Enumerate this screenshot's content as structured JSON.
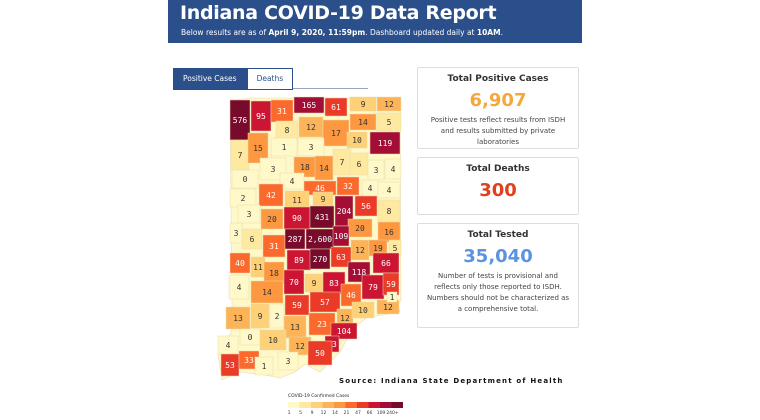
{
  "header": {
    "title": "Indiana COVID-19 Data Report",
    "sub_prefix": "Below results are as of ",
    "sub_date": "April 9, 2020, 11:59pm",
    "sub_mid": ". Dashboard updated daily at ",
    "sub_time": "10AM",
    "sub_end": "."
  },
  "tabs": [
    {
      "label": "Positive Cases",
      "active": true
    },
    {
      "label": "Deaths",
      "active": false
    }
  ],
  "panels": {
    "positive": {
      "title": "Total Positive Cases",
      "value": "6,907",
      "color": "#f5a83b",
      "note": "Positive tests reflect results from ISDH and results submitted by private laboratories"
    },
    "deaths": {
      "title": "Total Deaths",
      "value": "300",
      "color": "#e0401c"
    },
    "tested": {
      "title": "Total Tested",
      "value": "35,040",
      "color": "#5b93e0",
      "note": "Number of tests is provisional and reflects only those reported to ISDH. Numbers should not be characterized as a comprehensive total."
    }
  },
  "map": {
    "source": "Source: Indiana State Department of Health",
    "county_values": [
      "576",
      "95",
      "31",
      "165",
      "61",
      "9",
      "12",
      "8",
      "12",
      "17",
      "14",
      "5",
      "7",
      "15",
      "1",
      "3",
      "10",
      "119",
      "3",
      "18",
      "14",
      "7",
      "6",
      "3",
      "4",
      "0",
      "4",
      "46",
      "32",
      "4",
      "4",
      "2",
      "42",
      "11",
      "9",
      "204",
      "56",
      "8",
      "3",
      "20",
      "90",
      "431",
      "20",
      "16",
      "3",
      "6",
      "31",
      "287",
      "2,600",
      "109",
      "12",
      "19",
      "5",
      "40",
      "11",
      "18",
      "89",
      "270",
      "63",
      "118",
      "66",
      "4",
      "14",
      "70",
      "9",
      "83",
      "46",
      "79",
      "59",
      "13",
      "9",
      "2",
      "59",
      "57",
      "12",
      "10",
      "12",
      "1",
      "13",
      "23",
      "104",
      "4",
      "0",
      "10",
      "12",
      "93",
      "50",
      "53",
      "33",
      "1",
      "3"
    ],
    "legend": {
      "title": "COVID-19 Confirmed Cases",
      "ticks": [
        "1",
        "5",
        "9",
        "12",
        "14",
        "21",
        "47",
        "66",
        "109",
        "240+"
      ],
      "colors": [
        "#fff8c8",
        "#fde9a0",
        "#fed078",
        "#fdb458",
        "#fd9840",
        "#fb6a2c",
        "#ea3a28",
        "#cc1533",
        "#a30d36",
        "#780a2c"
      ]
    }
  }
}
